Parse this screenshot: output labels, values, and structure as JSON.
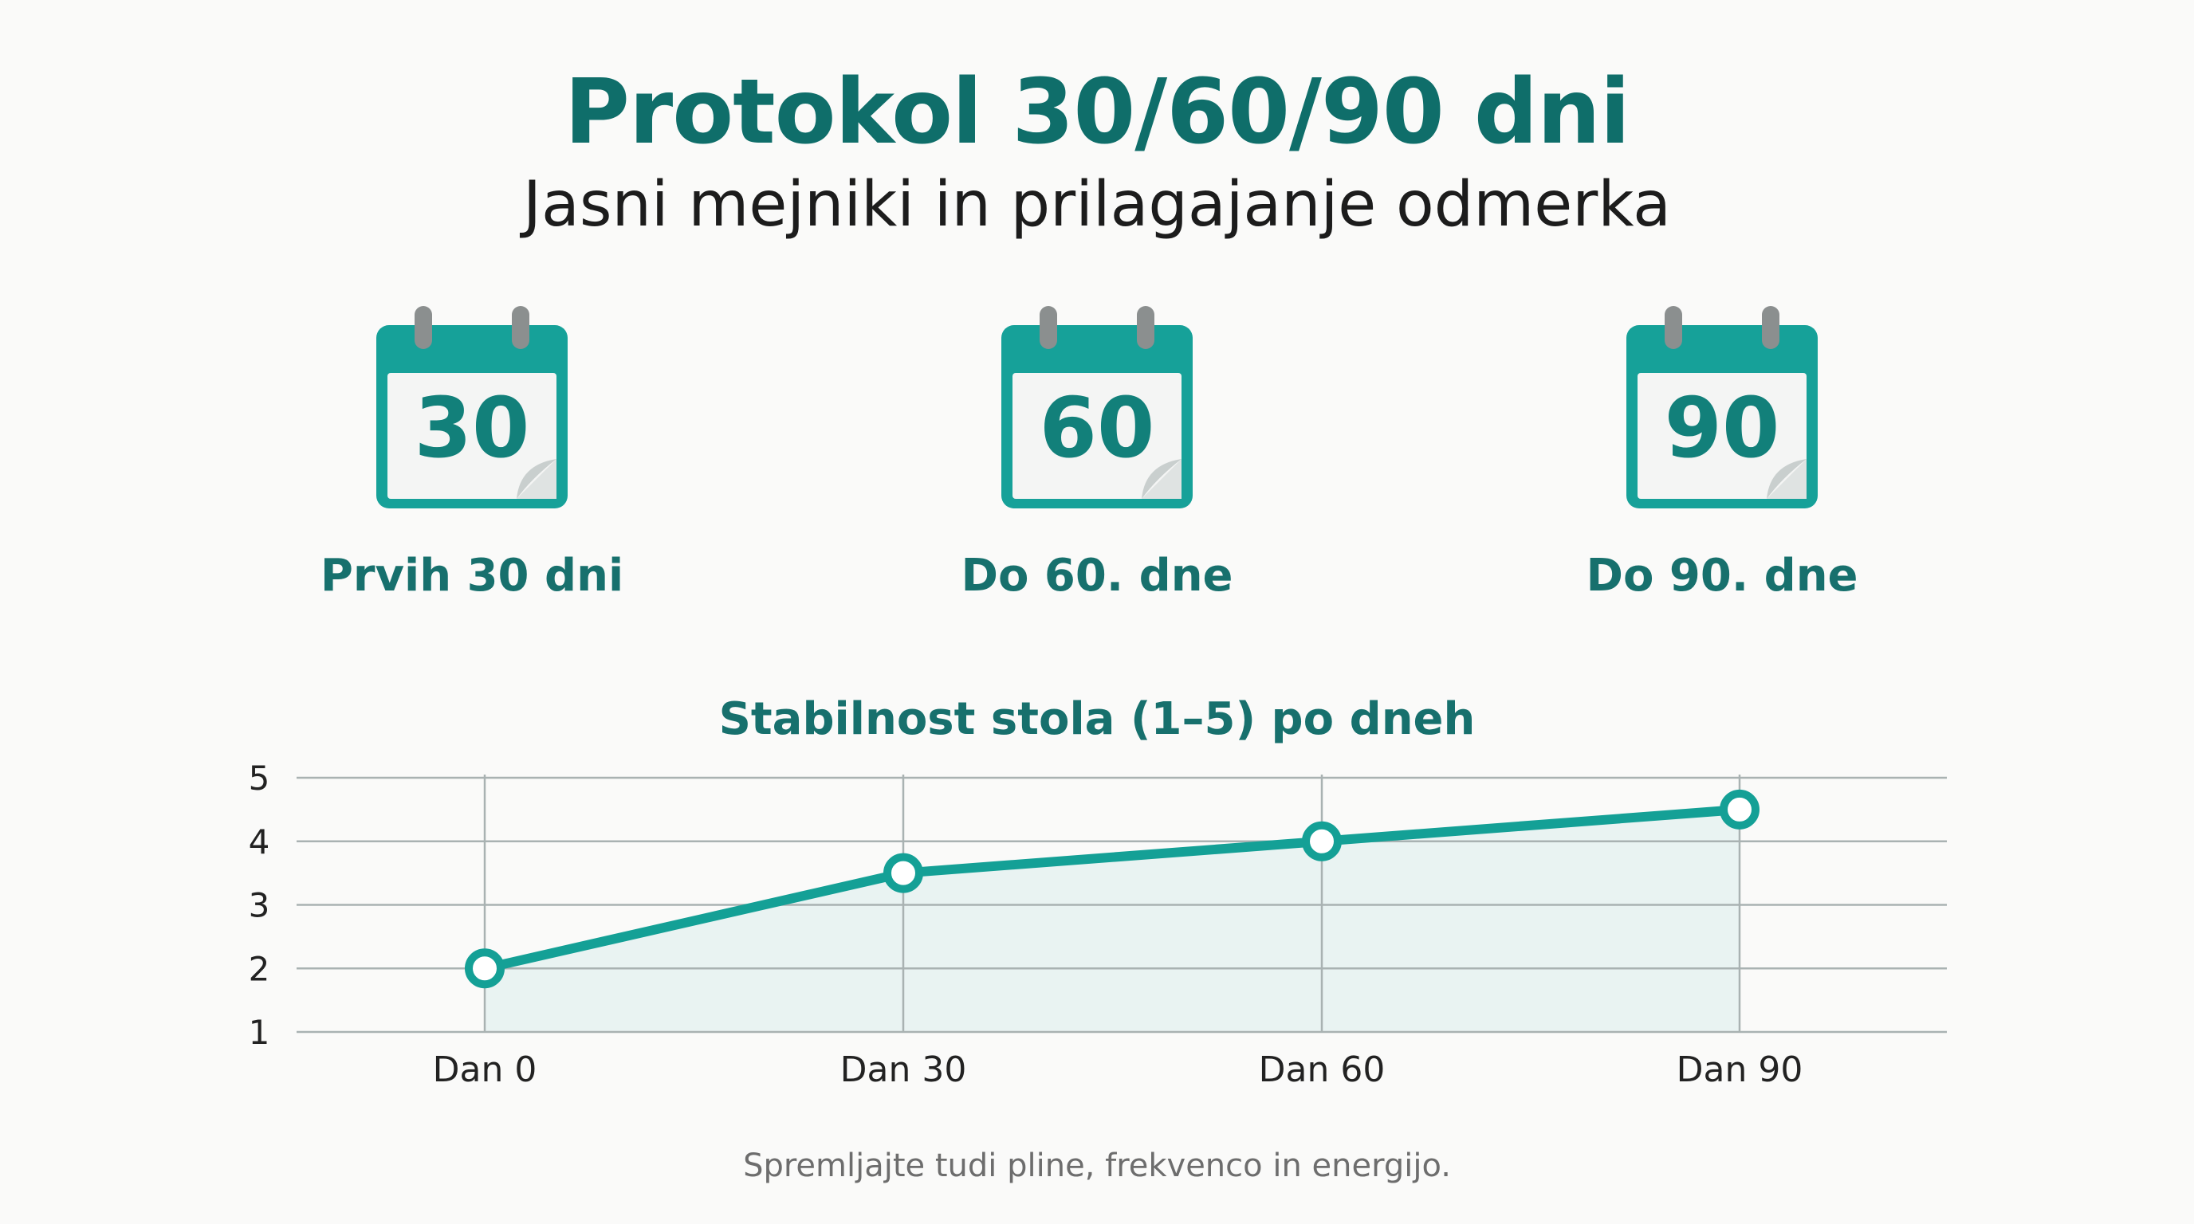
{
  "header": {
    "title": "Protokol 30/60/90 dni",
    "subtitle": "Jasni mejniki in prilagajanje odmerka"
  },
  "milestones": [
    {
      "number": "30",
      "label": "Prvih 30 dni",
      "icon": "calendar-icon"
    },
    {
      "number": "60",
      "label": "Do 60. dne",
      "icon": "calendar-icon"
    },
    {
      "number": "90",
      "label": "Do 90. dne",
      "icon": "calendar-icon"
    }
  ],
  "colors": {
    "accent": "#0f6e6a",
    "teal": "#14a096",
    "grid": "#a9b2b2",
    "area": "#e9f3f2"
  },
  "chart_data": {
    "type": "line",
    "title": "Stabilnost stola (1–5) po dneh",
    "categories": [
      "Dan 0",
      "Dan 30",
      "Dan 60",
      "Dan 90"
    ],
    "series": [
      {
        "values": [
          2,
          3.5,
          4,
          4.5
        ]
      }
    ],
    "y_ticks": [
      "1",
      "2",
      "3",
      "4",
      "5"
    ],
    "ylim": [
      1,
      5
    ],
    "grid": true,
    "filled_area": true
  },
  "footnote": "Spremljajte tudi pline, frekvenco in energijo."
}
